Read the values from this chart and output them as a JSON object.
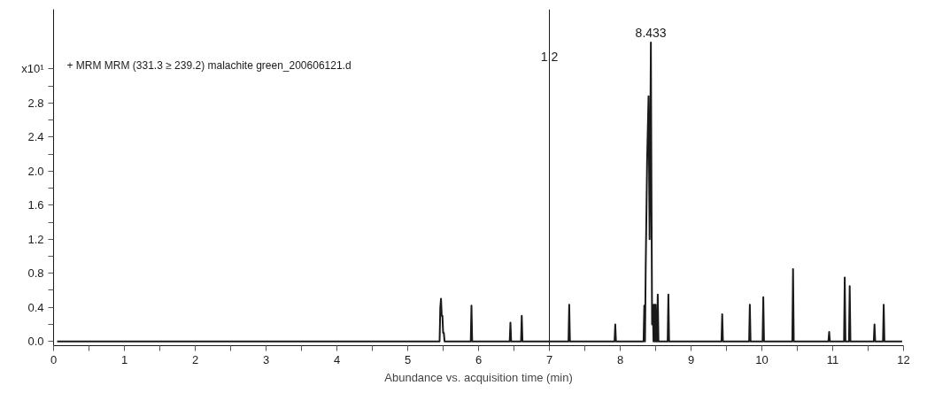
{
  "chart_data": {
    "type": "line",
    "xlabel": "Abundance vs. acquisition time (min)",
    "annotations": [
      "+ MRM MRM (331.3 ≥ 239.2) malachite green_200606121.d",
      {
        "text": "8.433",
        "x": 8.433,
        "y": 3.51
      },
      {
        "text": "1 2",
        "x": 7,
        "y": 3.2
      }
    ],
    "series": [
      {
        "color": "#1a1a1a",
        "x": [
          0.05,
          5.45,
          5.46,
          5.47,
          5.48,
          5.49,
          5.5,
          5.51,
          5.52,
          5.89,
          5.9,
          5.91,
          6.44,
          6.45,
          6.46,
          6.6,
          6.61,
          6.62,
          7.27,
          7.28,
          7.29,
          7.92,
          7.93,
          7.94,
          8.33,
          8.34,
          8.35,
          8.36,
          8.38,
          8.4,
          8.415,
          8.433,
          8.44,
          8.45,
          8.46,
          8.47,
          8.48,
          8.49,
          8.5,
          8.51,
          8.52,
          8.53,
          8.54,
          8.67,
          8.68,
          8.69,
          9.43,
          9.44,
          9.45,
          9.82,
          9.83,
          9.84,
          10.01,
          10.02,
          10.03,
          10.43,
          10.44,
          10.45,
          10.94,
          10.95,
          10.96,
          11.16,
          11.17,
          11.18,
          11.23,
          11.24,
          11.25,
          11.58,
          11.59,
          11.6,
          11.71,
          11.72,
          11.73,
          11.98
        ],
        "values": [
          0,
          0,
          0.4,
          0.5,
          0.3,
          0.3,
          0.1,
          0.1,
          0,
          0,
          0.42,
          0,
          0,
          0.22,
          0,
          0,
          0.3,
          0,
          0,
          0.43,
          0,
          0,
          0.2,
          0,
          0,
          0.42,
          0,
          0.87,
          2.14,
          2.88,
          1.2,
          3.51,
          1.95,
          0.2,
          0.43,
          0,
          0.43,
          0,
          0.43,
          0,
          0,
          0.55,
          0,
          0,
          0.55,
          0,
          0,
          0.32,
          0,
          0,
          0.43,
          0,
          0,
          0.52,
          0,
          0,
          0.85,
          0,
          0,
          0.11,
          0,
          0,
          0.75,
          0,
          0,
          0.65,
          0,
          0,
          0.2,
          0,
          0,
          0.43,
          0,
          0
        ]
      }
    ],
    "ref_lines": [
      {
        "axis": "x",
        "value": 7,
        "color": "#1a1a1a"
      }
    ],
    "xlim": [
      0,
      12
    ],
    "xticks": [
      0,
      {
        "value": 0.5,
        "label": null
      },
      1,
      {
        "value": 1.5,
        "label": null
      },
      2,
      {
        "value": 2.5,
        "label": null
      },
      3,
      {
        "value": 3.5,
        "label": null
      },
      4,
      {
        "value": 4.5,
        "label": null
      },
      5,
      {
        "value": 5.5,
        "label": null
      },
      6,
      {
        "value": 6.5,
        "label": null
      },
      7,
      {
        "value": 7.5,
        "label": null
      },
      8,
      {
        "value": 8.5,
        "label": null
      },
      9,
      {
        "value": 9.5,
        "label": null
      },
      10,
      {
        "value": 10.5,
        "label": null
      },
      11,
      {
        "value": 11.5,
        "label": null
      },
      12
    ],
    "ylim": [
      -0.05,
      3.9
    ],
    "yticks": [
      {
        "value": 0,
        "label": "0.0"
      },
      {
        "value": 0.2,
        "label": null
      },
      0.4,
      {
        "value": 0.6,
        "label": null
      },
      0.8,
      {
        "value": 1.0,
        "label": null
      },
      1.2,
      {
        "value": 1.4,
        "label": null
      },
      1.6,
      {
        "value": 1.8,
        "label": null
      },
      {
        "value": 2,
        "label": "2.0"
      },
      {
        "value": 2.2,
        "label": null
      },
      2.4,
      {
        "value": 2.6,
        "label": null
      },
      2.8,
      {
        "value": 3.0,
        "label": null
      },
      {
        "value": 3.2,
        "label": "x10¹"
      }
    ],
    "grid": false,
    "line_style": "solid",
    "marker": "none"
  }
}
